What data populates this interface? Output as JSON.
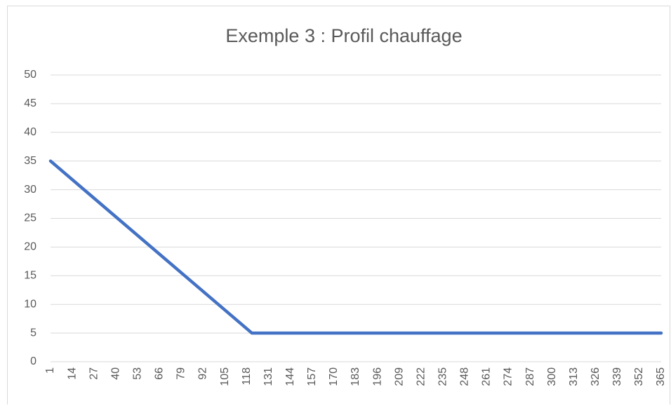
{
  "chart_data": {
    "type": "line",
    "title": "Exemple 3 : Profil chauffage",
    "x": [
      1,
      121,
      365
    ],
    "values": [
      35,
      5,
      5
    ],
    "color": "#4472c4",
    "xlim": [
      1,
      365
    ],
    "xticks": [
      1,
      14,
      27,
      40,
      53,
      66,
      79,
      92,
      105,
      118,
      131,
      144,
      157,
      170,
      183,
      196,
      209,
      222,
      235,
      248,
      261,
      274,
      287,
      300,
      313,
      326,
      339,
      352,
      365
    ],
    "ylim": [
      0,
      50
    ],
    "yticks": [
      0,
      5,
      10,
      15,
      20,
      25,
      30,
      35,
      40,
      45,
      50
    ],
    "grid": true
  }
}
